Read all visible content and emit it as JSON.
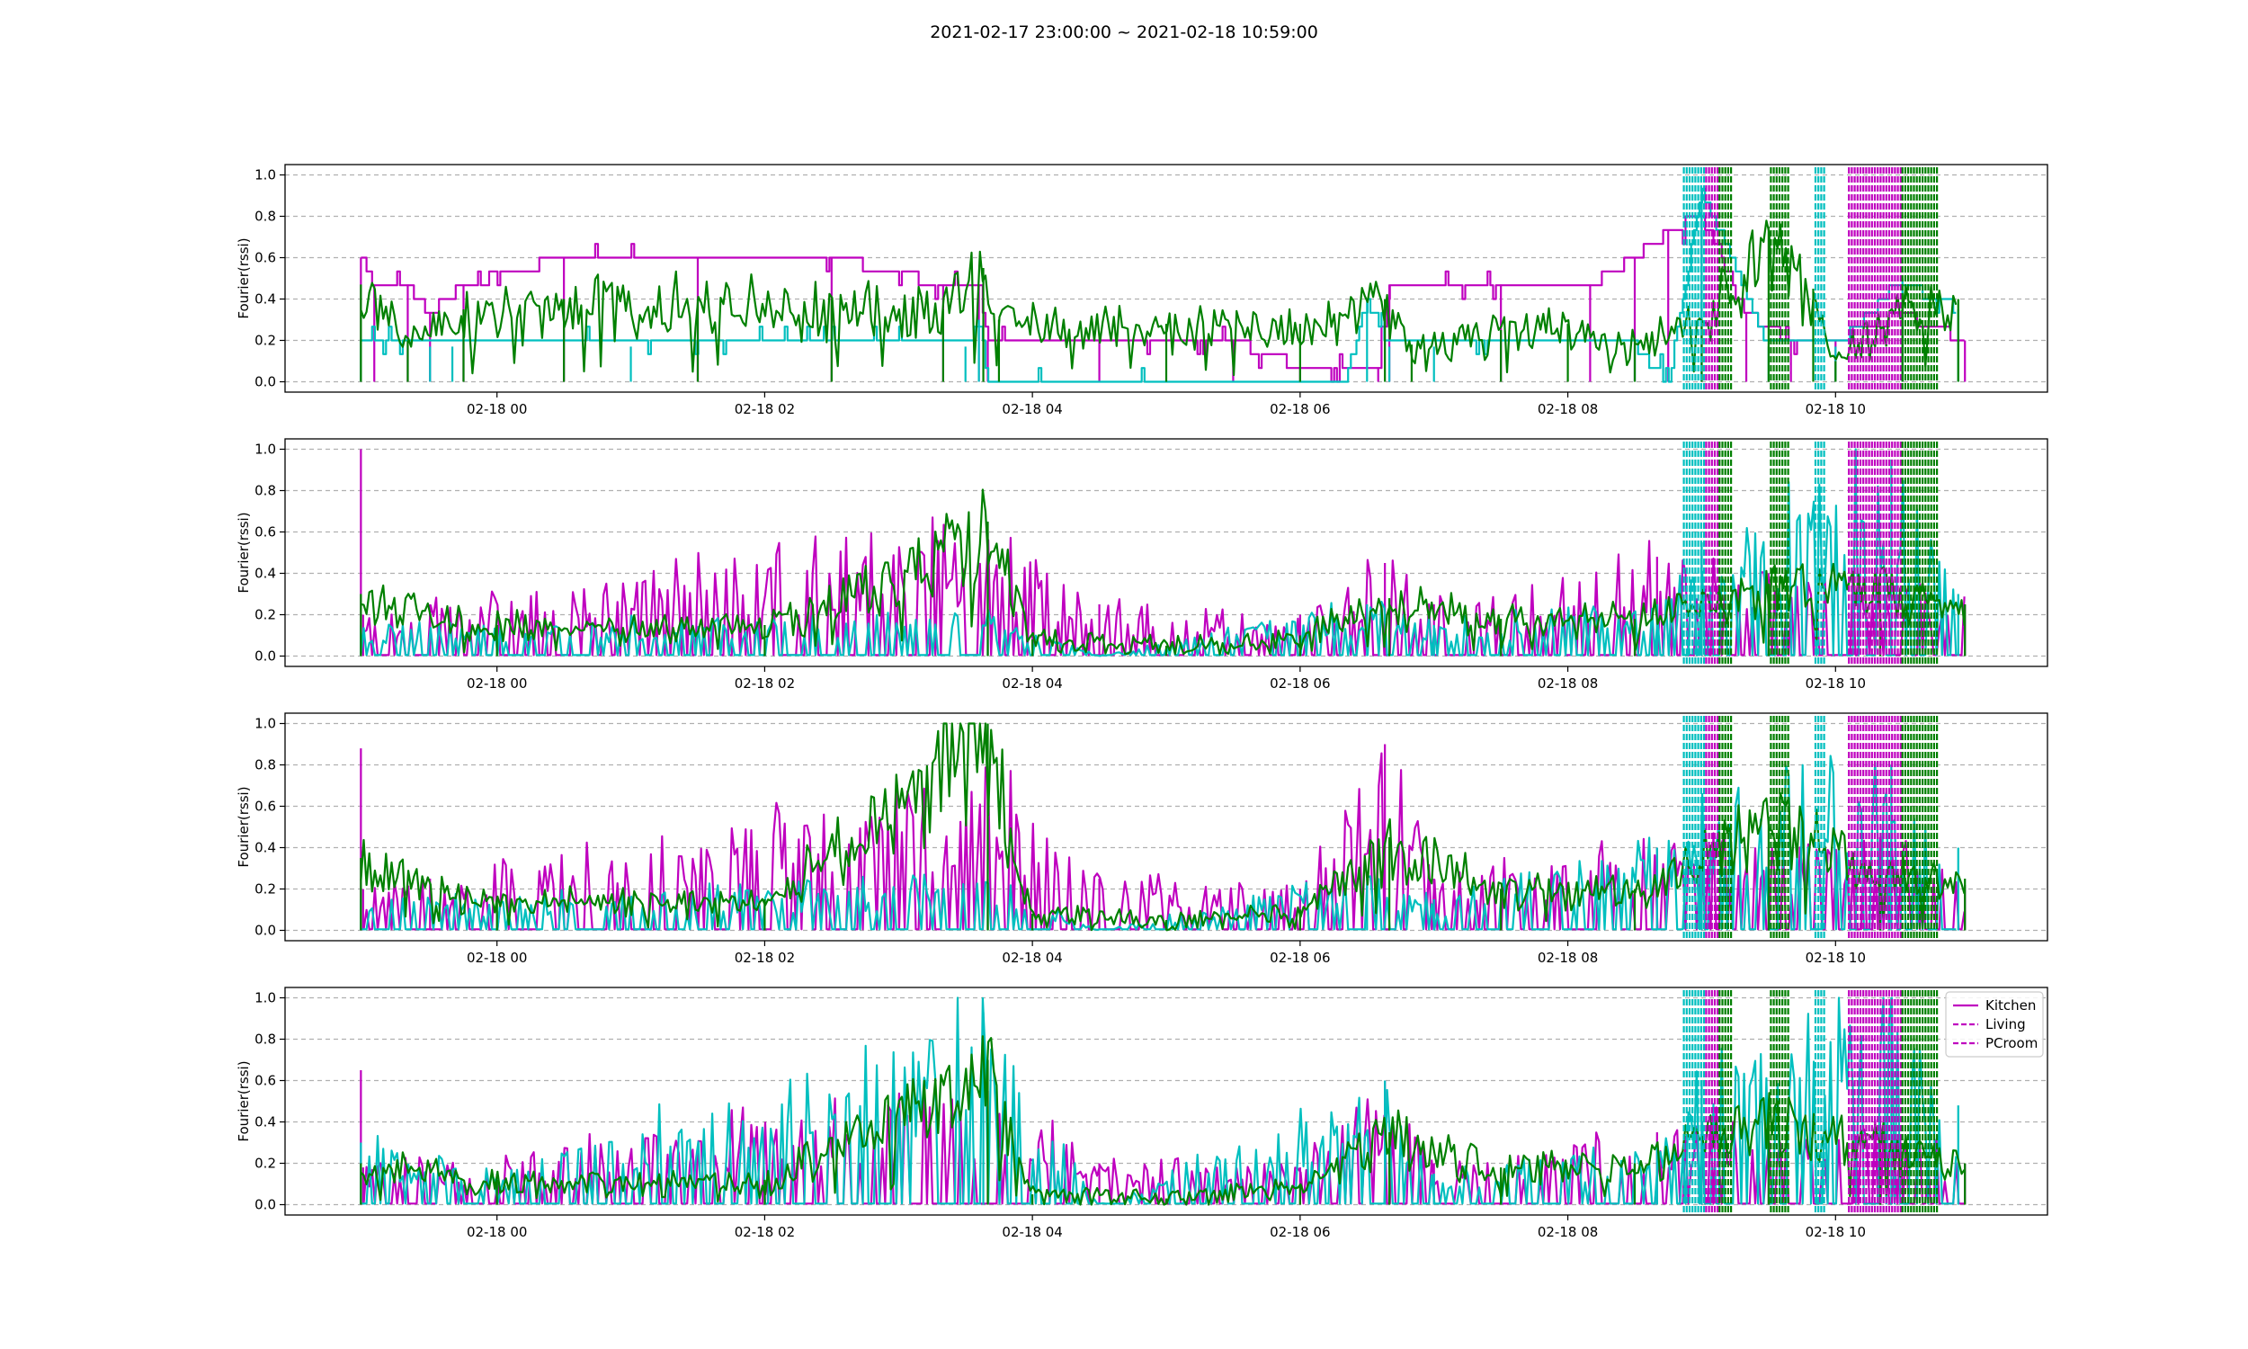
{
  "figure": {
    "title": "2021-02-17 23:00:00 ~ 2021-02-18 10:59:00"
  },
  "colors": {
    "kitchen": "#bf00bf",
    "living": "#00bfbf",
    "pcroom": "#008000",
    "grid": "#b0b0b0"
  },
  "chart_data": [
    {
      "type": "line",
      "ylabel": "Fourier(rssi)",
      "xlim": [
        "2021-02-17 22:25",
        "2021-02-18 11:35"
      ],
      "ylim": [
        -0.05,
        1.05
      ],
      "xticks": [
        "02-18 00",
        "02-18 02",
        "02-18 04",
        "02-18 06",
        "02-18 08",
        "02-18 10"
      ],
      "yticks": [
        "0.0",
        "0.2",
        "0.4",
        "0.6",
        "0.8",
        "1.0"
      ],
      "grid": "y dashed",
      "series": [
        {
          "name": "Kitchen",
          "color": "kitchen",
          "pattern": "step",
          "x": [
            "2021-02-17 22:59",
            "2021-02-17 23:05",
            "2021-02-17 23:20",
            "2021-02-17 23:30",
            "2021-02-17 23:45",
            "2021-02-18 00:30",
            "2021-02-18 01:30",
            "2021-02-18 02:30",
            "2021-02-18 03:20",
            "2021-02-18 03:36",
            "2021-02-18 03:40",
            "2021-02-18 04:30",
            "2021-02-18 05:30",
            "2021-02-18 06:00",
            "2021-02-18 06:35",
            "2021-02-18 06:40",
            "2021-02-18 07:30",
            "2021-02-18 08:10",
            "2021-02-18 08:30",
            "2021-02-18 08:45",
            "2021-02-18 09:00",
            "2021-02-18 09:20",
            "2021-02-18 09:40",
            "2021-02-18 10:00",
            "2021-02-18 10:30",
            "2021-02-18 10:58"
          ],
          "y": [
            0.6,
            0.47,
            0.47,
            0.33,
            0.47,
            0.6,
            0.6,
            0.6,
            0.47,
            0.47,
            0.2,
            0.2,
            0.2,
            0.07,
            0.07,
            0.47,
            0.47,
            0.47,
            0.6,
            0.73,
            0.8,
            0.33,
            0.2,
            0.2,
            0.33,
            0.2
          ]
        },
        {
          "name": "Living",
          "color": "living",
          "pattern": "step",
          "x": [
            "2021-02-17 22:59",
            "2021-02-17 23:30",
            "2021-02-17 23:40",
            "2021-02-18 01:00",
            "2021-02-18 03:30",
            "2021-02-18 03:36",
            "2021-02-18 03:40",
            "2021-02-18 05:00",
            "2021-02-18 06:20",
            "2021-02-18 06:30",
            "2021-02-18 06:40",
            "2021-02-18 07:00",
            "2021-02-18 08:30",
            "2021-02-18 08:45",
            "2021-02-18 09:00",
            "2021-02-18 09:30",
            "2021-02-18 10:00",
            "2021-02-18 10:30",
            "2021-02-18 10:55"
          ],
          "y": [
            0.2,
            0.17,
            0.17,
            0.17,
            0.17,
            0.3,
            0.0,
            0.0,
            0.0,
            0.4,
            0.17,
            0.17,
            0.17,
            0.0,
            0.93,
            0.17,
            0.17,
            0.5,
            0.35
          ]
        },
        {
          "name": "PCroom",
          "color": "pcroom",
          "pattern": "noisy",
          "x": [
            "2021-02-17 22:59",
            "2021-02-17 23:20",
            "2021-02-17 23:45",
            "2021-02-18 00:30",
            "2021-02-18 01:30",
            "2021-02-18 02:30",
            "2021-02-18 03:20",
            "2021-02-18 03:38",
            "2021-02-18 03:45",
            "2021-02-18 05:00",
            "2021-02-18 06:00",
            "2021-02-18 06:38",
            "2021-02-18 06:50",
            "2021-02-18 07:30",
            "2021-02-18 08:00",
            "2021-02-18 08:30",
            "2021-02-18 09:00",
            "2021-02-18 09:30",
            "2021-02-18 09:50",
            "2021-02-18 10:00",
            "2021-02-18 10:30",
            "2021-02-18 10:55"
          ],
          "y": [
            0.47,
            0.2,
            0.35,
            0.4,
            0.4,
            0.4,
            0.35,
            0.55,
            0.3,
            0.28,
            0.28,
            0.4,
            0.18,
            0.25,
            0.28,
            0.2,
            0.3,
            0.75,
            0.45,
            0.1,
            0.4,
            0.4
          ]
        }
      ],
      "bands": [
        {
          "from": "2021-02-18 08:52",
          "to": "2021-02-18 09:02",
          "color": "living"
        },
        {
          "from": "2021-02-18 09:02",
          "to": "2021-02-18 09:08",
          "color": "kitchen"
        },
        {
          "from": "2021-02-18 09:08",
          "to": "2021-02-18 09:14",
          "color": "pcroom"
        },
        {
          "from": "2021-02-18 09:31",
          "to": "2021-02-18 09:40",
          "color": "pcroom"
        },
        {
          "from": "2021-02-18 09:51",
          "to": "2021-02-18 09:55",
          "color": "living"
        },
        {
          "from": "2021-02-18 10:06",
          "to": "2021-02-18 10:30",
          "color": "kitchen"
        },
        {
          "from": "2021-02-18 10:30",
          "to": "2021-02-18 10:46",
          "color": "pcroom"
        }
      ]
    },
    {
      "type": "line",
      "ylabel": "Fourier(rssi)",
      "xlim": [
        "2021-02-17 22:25",
        "2021-02-18 11:35"
      ],
      "ylim": [
        -0.05,
        1.05
      ],
      "xticks": [
        "02-18 00",
        "02-18 02",
        "02-18 04",
        "02-18 06",
        "02-18 08",
        "02-18 10"
      ],
      "yticks": [
        "0.0",
        "0.2",
        "0.4",
        "0.6",
        "0.8",
        "1.0"
      ],
      "grid": "y dashed",
      "series": [
        {
          "name": "Kitchen",
          "color": "kitchen",
          "pattern": "spiky",
          "x": [
            "2021-02-17 22:59",
            "2021-02-17 23:00",
            "2021-02-17 23:30",
            "2021-02-18 03:40",
            "2021-02-18 04:30",
            "2021-02-18 06:00",
            "2021-02-18 06:38",
            "2021-02-18 07:00",
            "2021-02-18 08:40",
            "2021-02-18 09:00",
            "2021-02-18 09:30",
            "2021-02-18 10:20",
            "2021-02-18 10:58"
          ],
          "y": [
            1.0,
            0.2,
            0.25,
            0.6,
            0.25,
            0.2,
            0.45,
            0.25,
            0.48,
            0.5,
            0.4,
            0.4,
            0.25
          ]
        },
        {
          "name": "Living",
          "color": "living",
          "pattern": "spiky",
          "x": [
            "2021-02-17 22:59",
            "2021-02-18 00:00",
            "2021-02-18 03:40",
            "2021-02-18 04:30",
            "2021-02-18 06:30",
            "2021-02-18 07:00",
            "2021-02-18 08:40",
            "2021-02-18 09:00",
            "2021-02-18 10:25",
            "2021-02-18 10:55"
          ],
          "y": [
            0.15,
            0.15,
            0.2,
            0.0,
            0.25,
            0.15,
            0.25,
            0.55,
            0.95,
            0.3
          ]
        },
        {
          "name": "PCroom",
          "color": "pcroom",
          "pattern": "noisy",
          "x": [
            "2021-02-17 22:59",
            "2021-02-18 00:00",
            "2021-02-18 02:00",
            "2021-02-18 03:40",
            "2021-02-18 04:00",
            "2021-02-18 05:00",
            "2021-02-18 06:00",
            "2021-02-18 06:40",
            "2021-02-18 07:30",
            "2021-02-18 08:30",
            "2021-02-18 09:30",
            "2021-02-18 10:20",
            "2021-02-18 10:58"
          ],
          "y": [
            0.3,
            0.15,
            0.15,
            0.65,
            0.08,
            0.05,
            0.1,
            0.28,
            0.18,
            0.18,
            0.35,
            0.35,
            0.25
          ]
        }
      ],
      "bands": [
        {
          "from": "2021-02-18 08:52",
          "to": "2021-02-18 09:02",
          "color": "living"
        },
        {
          "from": "2021-02-18 09:02",
          "to": "2021-02-18 09:08",
          "color": "kitchen"
        },
        {
          "from": "2021-02-18 09:08",
          "to": "2021-02-18 09:14",
          "color": "pcroom"
        },
        {
          "from": "2021-02-18 09:31",
          "to": "2021-02-18 09:40",
          "color": "pcroom"
        },
        {
          "from": "2021-02-18 09:51",
          "to": "2021-02-18 09:55",
          "color": "living"
        },
        {
          "from": "2021-02-18 10:06",
          "to": "2021-02-18 10:30",
          "color": "kitchen"
        },
        {
          "from": "2021-02-18 10:30",
          "to": "2021-02-18 10:46",
          "color": "pcroom"
        }
      ]
    },
    {
      "type": "line",
      "ylabel": "Fourier(rssi)",
      "xlim": [
        "2021-02-17 22:25",
        "2021-02-18 11:35"
      ],
      "ylim": [
        -0.05,
        1.05
      ],
      "xticks": [
        "02-18 00",
        "02-18 02",
        "02-18 04",
        "02-18 06",
        "02-18 08",
        "02-18 10"
      ],
      "yticks": [
        "0.0",
        "0.2",
        "0.4",
        "0.6",
        "0.8",
        "1.0"
      ],
      "grid": "y dashed",
      "series": [
        {
          "name": "Kitchen",
          "color": "kitchen",
          "pattern": "spiky",
          "x": [
            "2021-02-17 22:59",
            "2021-02-17 23:00",
            "2021-02-17 23:30",
            "2021-02-18 03:40",
            "2021-02-18 04:30",
            "2021-02-18 06:00",
            "2021-02-18 06:38",
            "2021-02-18 07:00",
            "2021-02-18 08:40",
            "2021-02-18 09:00",
            "2021-02-18 09:30",
            "2021-02-18 10:20",
            "2021-02-18 10:58"
          ],
          "y": [
            0.88,
            0.2,
            0.25,
            0.75,
            0.25,
            0.2,
            0.9,
            0.25,
            0.4,
            0.5,
            0.4,
            0.45,
            0.22
          ]
        },
        {
          "name": "Living",
          "color": "living",
          "pattern": "spiky",
          "x": [
            "2021-02-17 22:59",
            "2021-02-18 00:00",
            "2021-02-18 03:40",
            "2021-02-18 04:30",
            "2021-02-18 06:30",
            "2021-02-18 07:00",
            "2021-02-18 08:40",
            "2021-02-18 09:00",
            "2021-02-18 10:25",
            "2021-02-18 10:55"
          ],
          "y": [
            0.15,
            0.15,
            0.25,
            0.0,
            0.25,
            0.15,
            0.4,
            0.55,
            0.8,
            0.4
          ]
        },
        {
          "name": "PCroom",
          "color": "pcroom",
          "pattern": "noisy",
          "x": [
            "2021-02-17 22:59",
            "2021-02-18 00:00",
            "2021-02-18 02:00",
            "2021-02-18 03:40",
            "2021-02-18 04:00",
            "2021-02-18 05:00",
            "2021-02-18 06:00",
            "2021-02-18 06:40",
            "2021-02-18 07:30",
            "2021-02-18 08:30",
            "2021-02-18 09:30",
            "2021-02-18 10:20",
            "2021-02-18 10:58"
          ],
          "y": [
            0.35,
            0.15,
            0.15,
            1.0,
            0.08,
            0.05,
            0.1,
            0.45,
            0.2,
            0.2,
            0.55,
            0.3,
            0.25
          ]
        }
      ],
      "bands": [
        {
          "from": "2021-02-18 08:52",
          "to": "2021-02-18 09:02",
          "color": "living"
        },
        {
          "from": "2021-02-18 09:02",
          "to": "2021-02-18 09:08",
          "color": "kitchen"
        },
        {
          "from": "2021-02-18 09:08",
          "to": "2021-02-18 09:14",
          "color": "pcroom"
        },
        {
          "from": "2021-02-18 09:31",
          "to": "2021-02-18 09:40",
          "color": "pcroom"
        },
        {
          "from": "2021-02-18 09:51",
          "to": "2021-02-18 09:55",
          "color": "living"
        },
        {
          "from": "2021-02-18 10:06",
          "to": "2021-02-18 10:30",
          "color": "kitchen"
        },
        {
          "from": "2021-02-18 10:30",
          "to": "2021-02-18 10:46",
          "color": "pcroom"
        }
      ]
    },
    {
      "type": "line",
      "ylabel": "Fourier(rssi)",
      "xlim": [
        "2021-02-17 22:25",
        "2021-02-18 11:35"
      ],
      "ylim": [
        -0.05,
        1.05
      ],
      "xticks": [
        "02-18 00",
        "02-18 02",
        "02-18 04",
        "02-18 06",
        "02-18 08",
        "02-18 10"
      ],
      "yticks": [
        "0.0",
        "0.2",
        "0.4",
        "0.6",
        "0.8",
        "1.0"
      ],
      "grid": "y dashed",
      "legend": {
        "placement": "upper right",
        "entries": [
          {
            "label": "Kitchen",
            "color": "kitchen",
            "style": "solid"
          },
          {
            "label": "Living",
            "color": "kitchen",
            "style": "dashed"
          },
          {
            "label": "PCroom",
            "color": "kitchen",
            "style": "dashed"
          }
        ]
      },
      "series": [
        {
          "name": "Kitchen",
          "color": "kitchen",
          "pattern": "spiky",
          "x": [
            "2021-02-17 22:59",
            "2021-02-17 23:00",
            "2021-02-17 23:30",
            "2021-02-18 03:40",
            "2021-02-18 04:30",
            "2021-02-18 06:00",
            "2021-02-18 06:38",
            "2021-02-18 07:00",
            "2021-02-18 08:40",
            "2021-02-18 09:00",
            "2021-02-18 09:30",
            "2021-02-18 10:20",
            "2021-02-18 10:58"
          ],
          "y": [
            0.65,
            0.18,
            0.2,
            0.55,
            0.2,
            0.18,
            0.6,
            0.2,
            0.35,
            0.45,
            0.35,
            0.4,
            0.2
          ]
        },
        {
          "name": "Living",
          "color": "living",
          "pattern": "spiky",
          "x": [
            "2021-02-17 22:59",
            "2021-02-18 00:00",
            "2021-02-18 03:38",
            "2021-02-18 04:30",
            "2021-02-18 06:38",
            "2021-02-18 07:00",
            "2021-02-18 08:40",
            "2021-02-18 09:00",
            "2021-02-18 10:25",
            "2021-02-18 10:55"
          ],
          "y": [
            0.3,
            0.15,
            0.93,
            0.0,
            0.6,
            0.15,
            0.3,
            0.6,
            1.0,
            0.48
          ]
        },
        {
          "name": "PCroom",
          "color": "pcroom",
          "pattern": "noisy",
          "x": [
            "2021-02-17 22:59",
            "2021-02-18 00:00",
            "2021-02-18 02:00",
            "2021-02-18 03:40",
            "2021-02-18 04:00",
            "2021-02-18 05:00",
            "2021-02-18 06:00",
            "2021-02-18 06:40",
            "2021-02-18 07:30",
            "2021-02-18 08:30",
            "2021-02-18 09:30",
            "2021-02-18 10:20",
            "2021-02-18 10:58"
          ],
          "y": [
            0.2,
            0.12,
            0.12,
            0.7,
            0.05,
            0.03,
            0.1,
            0.35,
            0.18,
            0.2,
            0.45,
            0.3,
            0.2
          ]
        }
      ],
      "bands": [
        {
          "from": "2021-02-18 08:52",
          "to": "2021-02-18 09:02",
          "color": "living"
        },
        {
          "from": "2021-02-18 09:02",
          "to": "2021-02-18 09:08",
          "color": "kitchen"
        },
        {
          "from": "2021-02-18 09:08",
          "to": "2021-02-18 09:14",
          "color": "pcroom"
        },
        {
          "from": "2021-02-18 09:31",
          "to": "2021-02-18 09:40",
          "color": "pcroom"
        },
        {
          "from": "2021-02-18 09:51",
          "to": "2021-02-18 09:55",
          "color": "living"
        },
        {
          "from": "2021-02-18 10:06",
          "to": "2021-02-18 10:30",
          "color": "kitchen"
        },
        {
          "from": "2021-02-18 10:30",
          "to": "2021-02-18 10:46",
          "color": "pcroom"
        }
      ]
    }
  ]
}
